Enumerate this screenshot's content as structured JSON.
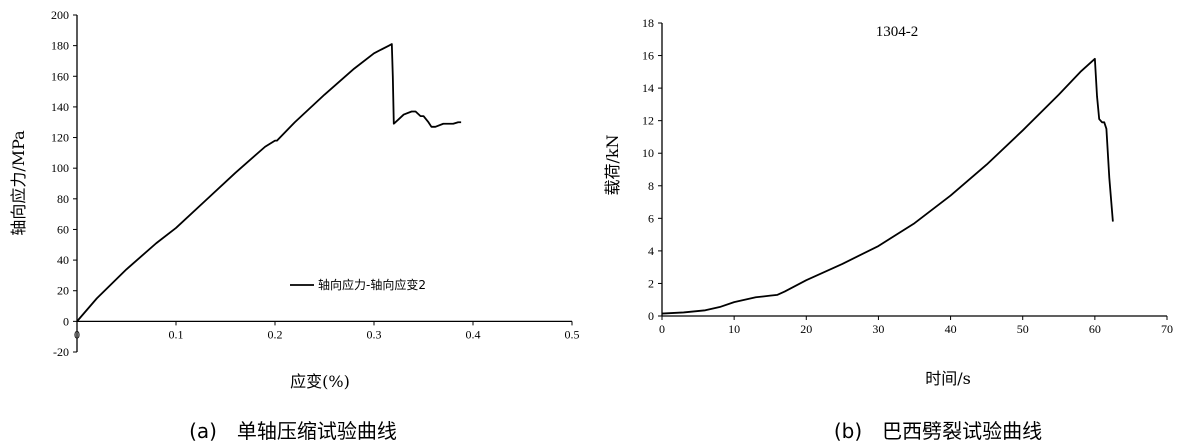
{
  "chart_data": [
    {
      "type": "line",
      "title": "",
      "caption": "(a)　单轴压缩试验曲线",
      "xlabel": "应变(%)",
      "ylabel": "轴向应力/MPa",
      "xlim": [
        0,
        0.5
      ],
      "ylim": [
        -20,
        200
      ],
      "xticks": [
        "0",
        "0.1",
        "0.2",
        "0.3",
        "0.4",
        "0.5"
      ],
      "yticks": [
        "-20",
        "0",
        "20",
        "40",
        "60",
        "80",
        "100",
        "120",
        "140",
        "160",
        "180",
        "200"
      ],
      "grid": false,
      "legend_position": "center-right",
      "series": [
        {
          "name": "轴向应力-轴向应变2",
          "x": [
            0,
            0.02,
            0.05,
            0.08,
            0.1,
            0.13,
            0.16,
            0.19,
            0.2,
            0.202,
            0.22,
            0.25,
            0.28,
            0.3,
            0.315,
            0.318,
            0.319,
            0.32,
            0.325,
            0.33,
            0.338,
            0.342,
            0.347,
            0.35,
            0.355,
            0.358,
            0.362,
            0.37,
            0.38,
            0.385,
            0.388
          ],
          "y": [
            0,
            15,
            34,
            51,
            61,
            79,
            97,
            114,
            118,
            118,
            130,
            148,
            165,
            175,
            180,
            181,
            160,
            129,
            132,
            135,
            137,
            137,
            134,
            134,
            130,
            127,
            127,
            129,
            129,
            130,
            130
          ]
        }
      ]
    },
    {
      "type": "line",
      "title": "1304-2",
      "caption": "(b)　巴西劈裂试验曲线",
      "xlabel": "时间/s",
      "ylabel": "载荷/kN",
      "xlim": [
        0,
        70
      ],
      "ylim": [
        0,
        18
      ],
      "xticks": [
        "0",
        "10",
        "20",
        "30",
        "40",
        "50",
        "60",
        "70"
      ],
      "yticks": [
        "0",
        "2",
        "4",
        "6",
        "8",
        "10",
        "12",
        "14",
        "16",
        "18"
      ],
      "grid": false,
      "series": [
        {
          "x": [
            0,
            3,
            6,
            8,
            10,
            12,
            13,
            14,
            15,
            16,
            17,
            20,
            25,
            30,
            35,
            40,
            45,
            50,
            55,
            58,
            59.5,
            60,
            60.3,
            60.6,
            61,
            61.3,
            61.6,
            62,
            62.5
          ],
          "y": [
            0.15,
            0.22,
            0.35,
            0.55,
            0.85,
            1.05,
            1.15,
            1.2,
            1.25,
            1.3,
            1.5,
            2.2,
            3.2,
            4.3,
            5.7,
            7.4,
            9.3,
            11.4,
            13.6,
            15.0,
            15.6,
            15.8,
            13.5,
            12.1,
            11.9,
            11.9,
            11.5,
            8.5,
            5.8
          ]
        }
      ]
    }
  ]
}
